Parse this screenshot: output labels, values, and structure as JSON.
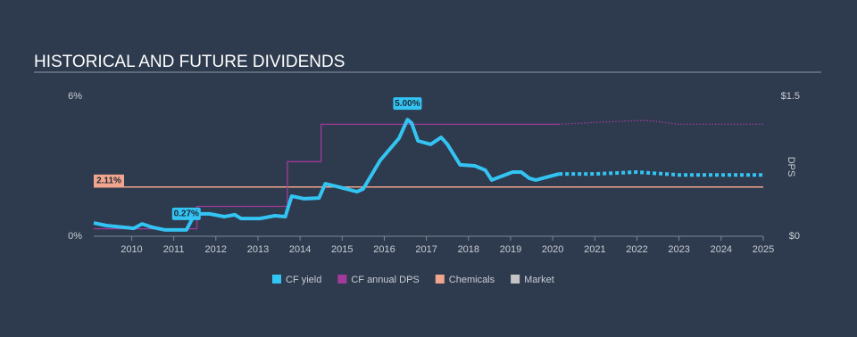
{
  "chart_data": {
    "type": "line",
    "title": "HISTORICAL AND FUTURE DIVIDENDS",
    "y2_label": "DPS",
    "xlim": [
      2009.1,
      2025
    ],
    "xticks": [
      2010,
      2011,
      2012,
      2013,
      2014,
      2015,
      2016,
      2017,
      2018,
      2019,
      2020,
      2021,
      2022,
      2023,
      2024,
      2025
    ],
    "ylim": [
      0,
      6
    ],
    "yticks": [
      {
        "value": 0,
        "label": "0%"
      },
      {
        "value": 6,
        "label": "6%"
      }
    ],
    "y2lim": [
      0,
      1.5
    ],
    "y2ticks": [
      {
        "value": 0,
        "label": "$0"
      },
      {
        "value": 1.5,
        "label": "$1.5"
      }
    ],
    "series": [
      {
        "name": "CF yield",
        "color": "#33c4f3",
        "x": [
          2009.1,
          2009.4,
          2010.05,
          2010.25,
          2010.5,
          2010.8,
          2011.3,
          2011.5,
          2011.85,
          2012.2,
          2012.45,
          2012.6,
          2013.05,
          2013.4,
          2013.65,
          2013.8,
          2014.1,
          2014.45,
          2014.6,
          2014.95,
          2015.35,
          2015.5,
          2015.9,
          2016.35,
          2016.55,
          2016.65,
          2016.8,
          2017.1,
          2017.35,
          2017.5,
          2017.8,
          2018.15,
          2018.4,
          2018.55,
          2019.05,
          2019.25,
          2019.45,
          2019.6,
          2020.15
        ],
        "values": [
          0.57,
          0.46,
          0.34,
          0.53,
          0.38,
          0.27,
          0.27,
          0.96,
          0.96,
          0.84,
          0.92,
          0.76,
          0.76,
          0.88,
          0.84,
          1.72,
          1.61,
          1.64,
          2.25,
          2.1,
          1.91,
          2.03,
          3.25,
          4.2,
          5.0,
          4.85,
          4.09,
          3.94,
          4.24,
          3.94,
          3.06,
          3.02,
          2.83,
          2.41,
          2.75,
          2.75,
          2.48,
          2.41,
          2.67
        ],
        "forecast_x": [
          2020.15,
          2021,
          2022,
          2023,
          2025
        ],
        "forecast_values": [
          2.67,
          2.67,
          2.75,
          2.63,
          2.63
        ],
        "annotations": [
          {
            "x": 2016.55,
            "value": 5.0,
            "label": "5.00%"
          },
          {
            "x": 2011.3,
            "value": 0.27,
            "label": "0.27%"
          }
        ]
      },
      {
        "name": "CF annual DPS",
        "color": "#a23a9a",
        "axis": "y2",
        "x": [
          2009.1,
          2011.55,
          2011.55,
          2013.7,
          2013.7,
          2014.5,
          2014.5,
          2020.15
        ],
        "values": [
          0.08,
          0.08,
          0.32,
          0.32,
          0.8,
          0.8,
          1.2,
          1.2
        ],
        "forecast_x": [
          2020.15,
          2021,
          2022,
          2022.3,
          2023,
          2025
        ],
        "forecast_values": [
          1.2,
          1.22,
          1.24,
          1.24,
          1.2,
          1.2
        ]
      },
      {
        "name": "Chemicals",
        "color": "#f2a58e",
        "value": 2.11,
        "value_label": "2.11%"
      },
      {
        "name": "Market",
        "color": "#c4c4c4"
      }
    ]
  }
}
